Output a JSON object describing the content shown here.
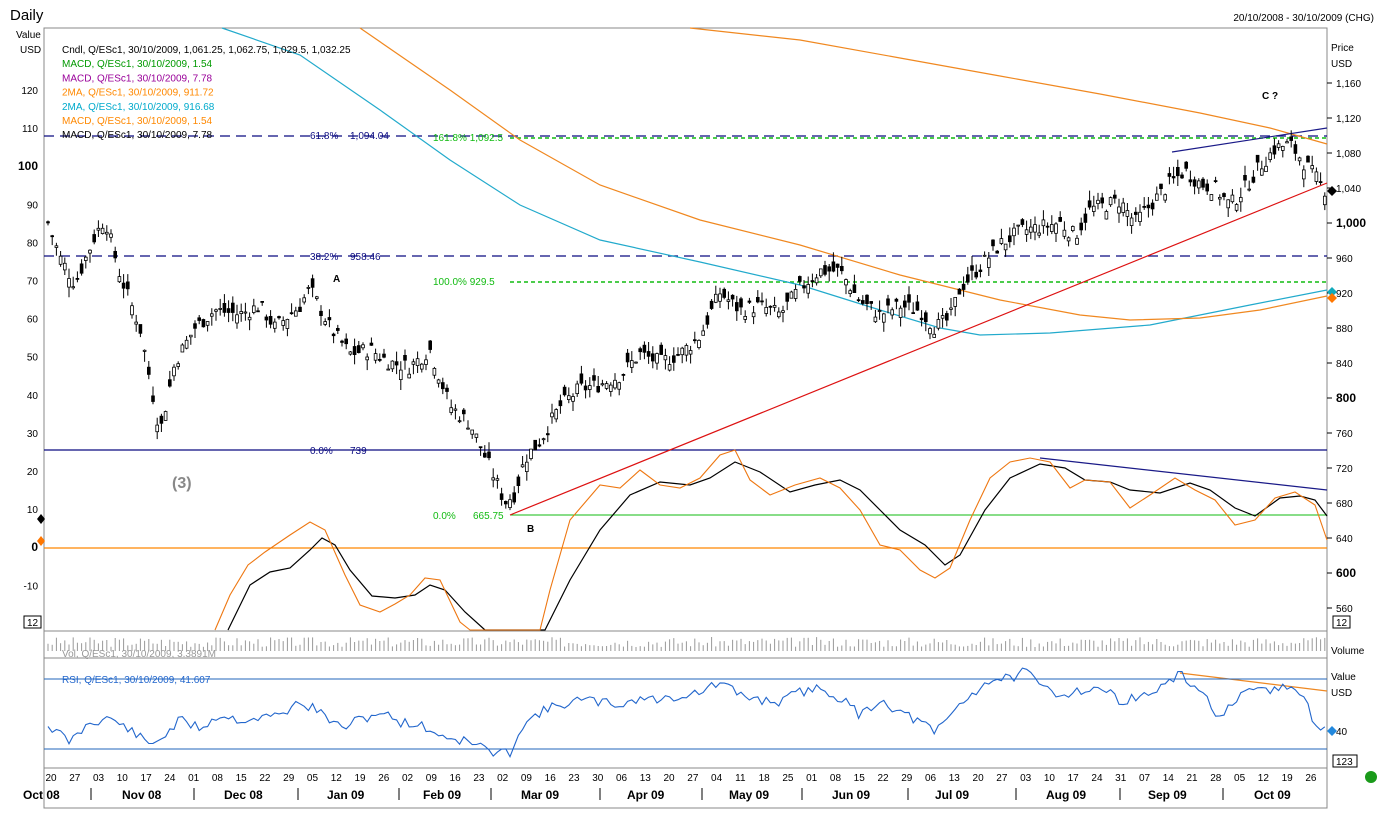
{
  "header": {
    "title": "Daily",
    "date_range": "20/10/2008 - 30/10/2009 (CHG)"
  },
  "axis": {
    "left_title1": "Value",
    "left_title2": "USD",
    "right_title1": "Price",
    "right_title2": "USD",
    "left_ticks": [
      "120",
      "110",
      "100",
      "90",
      "80",
      "70",
      "60",
      "50",
      "40",
      "30",
      "20",
      "10",
      "0",
      "-10"
    ],
    "right_ticks": [
      "1,160",
      "1,120",
      "1,080",
      "1,040",
      "1,000",
      "960",
      "920",
      "880",
      "840",
      "800",
      "760",
      "720",
      "680",
      "640",
      "600",
      "560"
    ],
    "vol_label": "Volume",
    "rsi_title1": "Value",
    "rsi_title2": "USD",
    "rsi_tick": "40",
    "rsi_scale": "123",
    "price_scale_left": "12",
    "price_scale_right": "12"
  },
  "legend": [
    {
      "text": "Cndl, Q/ESc1, 30/10/2009, 1,061.25, 1,062.75, 1,029.5, 1,032.25",
      "color": "#000000"
    },
    {
      "text": "MACD, Q/ESc1, 30/10/2009, 1.54",
      "color": "#009900"
    },
    {
      "text": "MACD, Q/ESc1, 30/10/2009, 7.78",
      "color": "#990099"
    },
    {
      "text": "2MA, Q/ESc1, 30/10/2009, 911.72",
      "color": "#ff8800"
    },
    {
      "text": "2MA, Q/ESc1, 30/10/2009, 916.68",
      "color": "#00aacc"
    },
    {
      "text": "MACD, Q/ESc1, 30/10/2009, 1.54",
      "color": "#ff8800"
    },
    {
      "text": "MACD, Q/ESc1, 30/10/2009, 7.78",
      "color": "#000000"
    }
  ],
  "fib": {
    "r618": "61.8%",
    "r618_val": "1,094.04",
    "e1618": "161.8% 1,092.5",
    "r382": "38.2%",
    "r382_val": "958.46",
    "e100": "100.0% 929.5",
    "r0": "0.0%",
    "r0_val": "739",
    "e0": "0.0%",
    "e0_val": "665.75"
  },
  "annotations": {
    "a": "A",
    "b": "B",
    "c": "C ?",
    "wave3": "(3)"
  },
  "volume_label": "Vol, Q/ESc1, 30/10/2009, 3.3891M",
  "rsi_label": "RSI, Q/ESc1, 30/10/2009, 41.607",
  "dates": [
    "20",
    "27",
    "03",
    "10",
    "17",
    "24",
    "01",
    "08",
    "15",
    "22",
    "29",
    "05",
    "12",
    "19",
    "26",
    "02",
    "09",
    "16",
    "23",
    "02",
    "09",
    "16",
    "23",
    "30",
    "06",
    "13",
    "20",
    "27",
    "04",
    "11",
    "18",
    "25",
    "01",
    "08",
    "15",
    "22",
    "29",
    "06",
    "13",
    "20",
    "27",
    "03",
    "10",
    "17",
    "24",
    "31",
    "07",
    "14",
    "21",
    "28",
    "05",
    "12",
    "19",
    "26"
  ],
  "months": [
    "Oct 08",
    "Nov 08",
    "Dec 08",
    "Jan 09",
    "Feb 09",
    "Mar 09",
    "Apr 09",
    "May 09",
    "Jun 09",
    "Jul 09",
    "Aug 09",
    "Sep 09",
    "Oct 09"
  ],
  "chart_data": {
    "type": "candlestick",
    "instrument": "Q/ESc1",
    "price_range": [
      540,
      1180
    ],
    "macd_range": [
      -15,
      130
    ],
    "rsi_levels_drawn": [
      30,
      70
    ],
    "swing_points": {
      "A": 958,
      "B": 665.75,
      "C": 1100
    },
    "fib_levels": {
      "61.8%": 1094.04,
      "38.2%": 958.46,
      "0.0%": 739,
      "161.8%": 1092.5,
      "100.0%": 929.5,
      "0.0%_b": 665.75
    },
    "last_close": 1032.25,
    "ma_fast": 916.68,
    "ma_slow": 911.72,
    "rsi_last": 41.607
  }
}
